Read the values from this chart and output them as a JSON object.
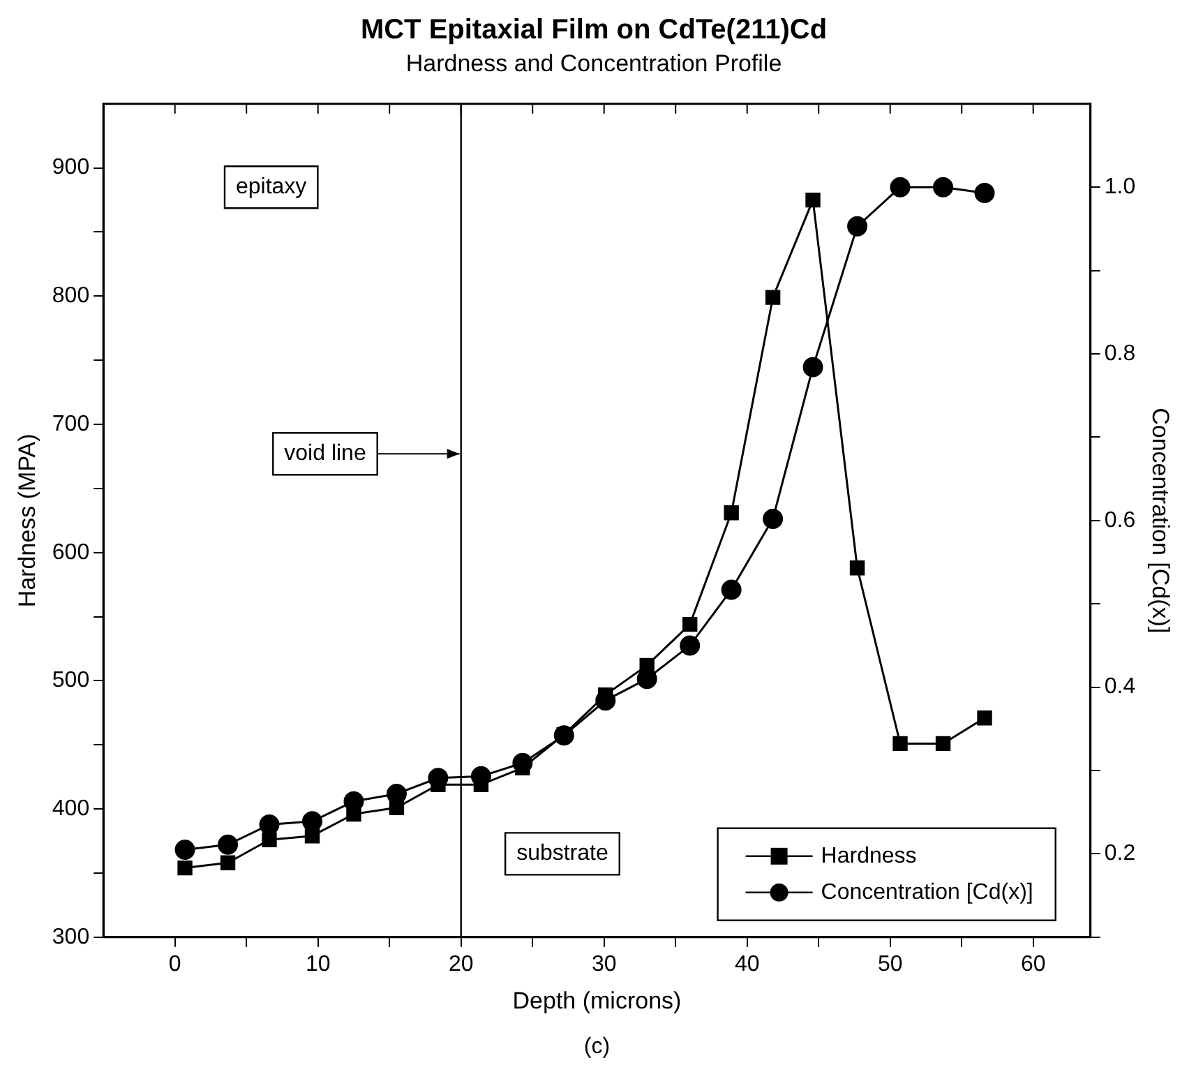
{
  "chart_data": {
    "type": "line",
    "title": "MCT Epitaxial Film on CdTe(211)Cd",
    "subtitle": "Hardness and Concentration Profile",
    "xlabel": "Depth (microns)",
    "ylabel": "Hardness (MPA)",
    "y2label": "Concentration [Cd(x)]",
    "x": [
      0.7,
      3.7,
      6.6,
      9.6,
      12.5,
      15.5,
      18.4,
      21.4,
      24.3,
      27.2,
      30.1,
      33.0,
      36.0,
      38.9,
      41.8,
      44.6,
      47.7,
      50.7,
      53.7,
      56.6
    ],
    "series": [
      {
        "name": "Hardness",
        "color": "#000000",
        "marker": "square",
        "values": [
          354,
          358,
          376,
          379,
          396,
          401,
          419,
          419,
          432,
          458,
          489,
          512,
          544,
          631,
          799,
          875,
          588,
          451,
          451,
          471
        ]
      },
      {
        "name": "Concentration [Cd(x)]",
        "color": "#000000",
        "marker": "circle",
        "axis": "y2",
        "values": [
          0.205,
          0.211,
          0.235,
          0.239,
          0.263,
          0.272,
          0.291,
          0.293,
          0.309,
          0.342,
          0.384,
          0.41,
          0.45,
          0.517,
          0.602,
          0.784,
          0.953,
          1.0,
          1.0,
          0.993
        ]
      }
    ],
    "xlim": [
      -5,
      64
    ],
    "xticks": [
      0,
      {
        "value": 5,
        "label": null
      },
      10,
      {
        "value": 15,
        "label": null
      },
      20,
      {
        "value": 25,
        "label": null
      },
      30,
      {
        "value": 35,
        "label": null
      },
      40,
      {
        "value": 45,
        "label": null
      },
      50,
      {
        "value": 55,
        "label": null
      },
      60
    ],
    "ylim": [
      300,
      950
    ],
    "yticks": [
      300,
      {
        "value": 350,
        "label": null
      },
      400,
      {
        "value": 450,
        "label": null
      },
      500,
      {
        "value": 550,
        "label": null
      },
      600,
      {
        "value": 650,
        "label": null
      },
      700,
      {
        "value": 750,
        "label": null
      },
      800,
      {
        "value": 850,
        "label": null
      },
      900
    ],
    "y2lim": [
      0.1,
      1.1
    ],
    "y2ticks": [
      {
        "value": 0.1,
        "label": null
      },
      0.2,
      {
        "value": 0.3,
        "label": null
      },
      0.4,
      {
        "value": 0.5,
        "label": null
      },
      0.6,
      {
        "value": 0.7,
        "label": null
      },
      0.8,
      {
        "value": 0.9,
        "label": null
      },
      {
        "value": 1,
        "label": "1.0"
      }
    ],
    "ref_lines": [
      {
        "axis": "x",
        "value": 20,
        "label": "void line",
        "color": "#000000"
      }
    ],
    "annotations": [
      "epitaxy",
      "substrate",
      "(c)"
    ],
    "legend": "bottom right",
    "grid": false,
    "line_style": "solid"
  }
}
